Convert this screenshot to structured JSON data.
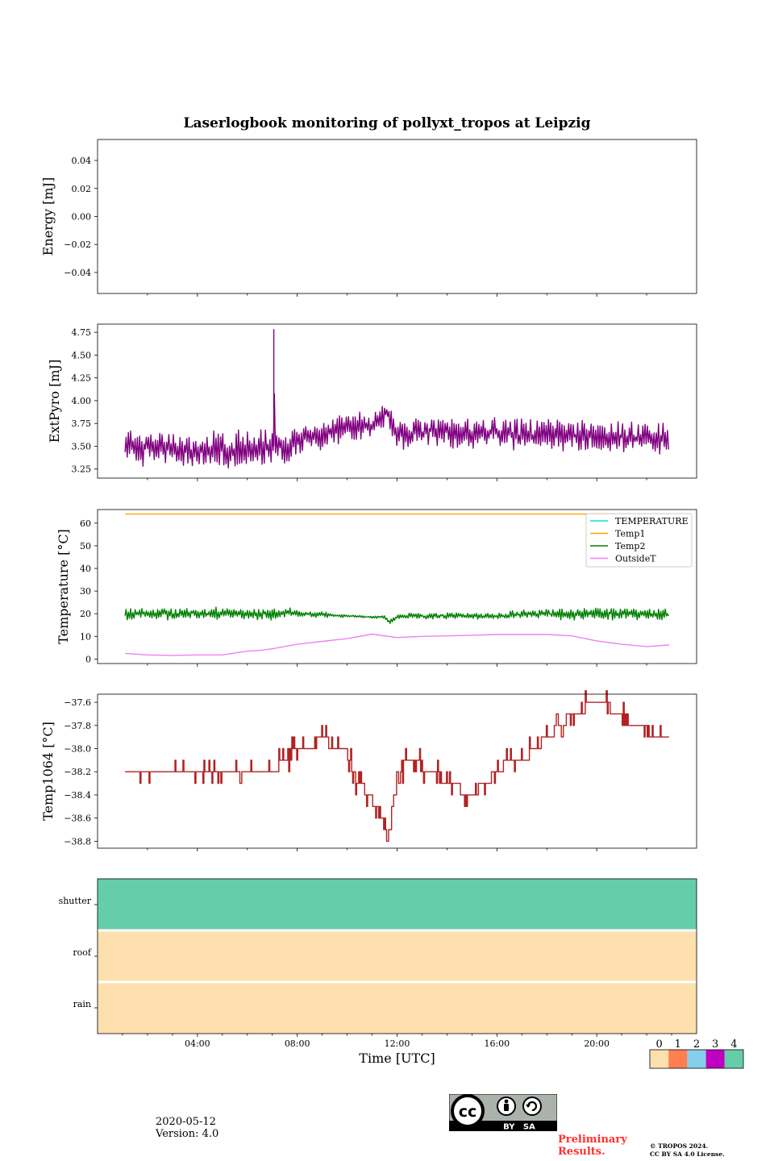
{
  "chart_data": [
    {
      "type": "line",
      "title": "Laserlogbook monitoring of pollyxt_tropos at Leipzig",
      "ylabel": "Energy [mJ]",
      "ylim": [
        -0.055,
        0.055
      ],
      "yticks": [
        0.04,
        0.02,
        0.0,
        -0.02,
        -0.04
      ],
      "ytick_labels": [
        "0.04",
        "0.02",
        "0.00",
        "−0.02",
        "−0.04"
      ],
      "series": []
    },
    {
      "type": "line",
      "ylabel": "ExtPyro [mJ]",
      "ylim": [
        3.15,
        4.84
      ],
      "yticks": [
        3.25,
        3.5,
        3.75,
        4.0,
        4.25,
        4.5,
        4.75
      ],
      "ytick_labels": [
        "3.25",
        "3.50",
        "3.75",
        "4.00",
        "4.25",
        "4.50",
        "4.75"
      ],
      "series": [
        {
          "name": "ExtPyro",
          "color": "#800080",
          "x": [
            1.1,
            2.0,
            3.0,
            4.0,
            5.0,
            6.0,
            6.5,
            7.05,
            7.06,
            7.1,
            7.5,
            8.0,
            9.0,
            10.0,
            11.0,
            11.6,
            12.0,
            13.0,
            14.0,
            15.0,
            16.0,
            17.0,
            18.0,
            19.0,
            20.0,
            21.0,
            22.0,
            22.9
          ],
          "y": [
            3.52,
            3.48,
            3.47,
            3.46,
            3.45,
            3.47,
            3.48,
            3.5,
            4.78,
            3.55,
            3.45,
            3.58,
            3.62,
            3.7,
            3.72,
            3.9,
            3.62,
            3.65,
            3.66,
            3.64,
            3.63,
            3.62,
            3.63,
            3.62,
            3.6,
            3.6,
            3.58,
            3.57
          ],
          "band": [
            0.28,
            0.3,
            0.3,
            0.3,
            0.3,
            0.3,
            0.3,
            0.28,
            0,
            0.25,
            0.25,
            0.25,
            0.25,
            0.25,
            0.25,
            0.2,
            0.25,
            0.25,
            0.25,
            0.25,
            0.25,
            0.25,
            0.25,
            0.25,
            0.25,
            0.25,
            0.25,
            0.25
          ]
        }
      ]
    },
    {
      "type": "line",
      "ylabel": "Temperature [°C]",
      "ylim": [
        -2,
        66
      ],
      "yticks": [
        0,
        10,
        20,
        30,
        40,
        50,
        60
      ],
      "ytick_labels": [
        "0",
        "10",
        "20",
        "30",
        "40",
        "50",
        "60"
      ],
      "legend_position": "top-right",
      "series": [
        {
          "name": "TEMPERATURE",
          "color": "#00e5e5",
          "x": [],
          "y": []
        },
        {
          "name": "Temp1",
          "color": "#ffa500",
          "x": [
            1.1,
            22.9
          ],
          "y": [
            64,
            64
          ]
        },
        {
          "name": "Temp2",
          "color": "#008000",
          "x": [
            1.1,
            3.0,
            5.0,
            7.0,
            7.5,
            8.0,
            9.0,
            10.0,
            11.0,
            11.5,
            11.7,
            12.0,
            13.0,
            14.0,
            15.0,
            16.0,
            17.0,
            18.0,
            19.0,
            20.0,
            21.0,
            22.0,
            22.9
          ],
          "y": [
            20,
            20,
            20,
            20,
            20.5,
            20,
            19.5,
            19,
            18.5,
            18.5,
            16,
            19,
            19,
            19,
            19,
            19,
            19.5,
            20,
            20,
            20,
            20,
            20,
            20
          ],
          "band": [
            4,
            4,
            4,
            4,
            3,
            2,
            2,
            1,
            1,
            1,
            2,
            2,
            2,
            2,
            2,
            2,
            3,
            3,
            4,
            4,
            4,
            4,
            4
          ]
        },
        {
          "name": "OutsideT",
          "color": "#ee82ee",
          "x": [
            1.1,
            2.0,
            3.0,
            4.0,
            5.0,
            6.0,
            6.5,
            7.0,
            8.0,
            9.0,
            10.0,
            11.0,
            12.0,
            13.0,
            14.0,
            15.0,
            16.0,
            17.0,
            18.0,
            19.0,
            20.0,
            21.0,
            22.0,
            22.9
          ],
          "y": [
            2.5,
            1.8,
            1.6,
            1.8,
            1.8,
            3.5,
            3.8,
            4.5,
            6.5,
            7.8,
            9.0,
            11.0,
            9.5,
            10.0,
            10.2,
            10.5,
            10.8,
            10.8,
            10.8,
            10.2,
            8.0,
            6.5,
            5.5,
            6.2
          ]
        }
      ]
    },
    {
      "type": "line",
      "ylabel": "Temp1064 [°C]",
      "ylim": [
        -38.86,
        -37.53
      ],
      "yticks": [
        -37.6,
        -37.8,
        -38.0,
        -38.2,
        -38.4,
        -38.6,
        -38.8
      ],
      "ytick_labels": [
        "−37.6",
        "−37.8",
        "−38.0",
        "−38.2",
        "−38.4",
        "−38.6",
        "−38.8"
      ],
      "series": [
        {
          "name": "Temp1064",
          "color": "#b22222",
          "x": [
            1.1,
            3.0,
            5.0,
            7.0,
            7.5,
            8.0,
            8.5,
            9.0,
            9.5,
            10.0,
            10.3,
            10.8,
            11.2,
            11.4,
            11.6,
            11.8,
            12.0,
            12.5,
            13.0,
            13.5,
            14.0,
            14.5,
            15.0,
            15.5,
            16.0,
            16.5,
            17.0,
            17.5,
            18.0,
            18.5,
            19.0,
            19.5,
            20.0,
            20.5,
            21.0,
            21.5,
            22.0,
            22.5,
            22.9
          ],
          "y": [
            -38.15,
            -38.2,
            -38.2,
            -38.2,
            -38.1,
            -37.95,
            -38.0,
            -37.9,
            -38.0,
            -38.05,
            -38.25,
            -38.4,
            -38.5,
            -38.6,
            -38.8,
            -38.5,
            -38.2,
            -38.1,
            -38.15,
            -38.2,
            -38.3,
            -38.35,
            -38.4,
            -38.3,
            -38.2,
            -38.1,
            -38.1,
            -38.0,
            -37.9,
            -37.8,
            -37.7,
            -37.65,
            -37.65,
            -37.65,
            -37.7,
            -37.8,
            -37.85,
            -37.9,
            -37.95
          ]
        }
      ]
    },
    {
      "type": "heatmap",
      "xlabel": "Time [UTC]",
      "rows": [
        "shutter",
        "roof",
        "rain"
      ],
      "values": [
        4,
        0,
        0
      ],
      "colorbar": {
        "ticks": [
          "0",
          "1",
          "2",
          "3",
          "4"
        ],
        "colors": [
          "#fde0ae",
          "#ff7f50",
          "#87ceeb",
          "#c000c0",
          "#66cdaa"
        ]
      }
    }
  ],
  "time_axis": {
    "tick_hours": [
      4,
      8,
      12,
      16,
      20
    ],
    "tick_labels": [
      "04:00",
      "08:00",
      "12:00",
      "16:00",
      "20:00"
    ],
    "range_hours": [
      0,
      24
    ]
  },
  "footer": {
    "date": "2020-05-12",
    "version": "Version: 4.0",
    "license_badge": "BY   SA",
    "preliminary_line1": "Preliminary",
    "preliminary_line2": "Results.",
    "copyright_line1": "© TROPOS 2024.",
    "copyright_line2": "CC BY SA 4.0 License."
  }
}
